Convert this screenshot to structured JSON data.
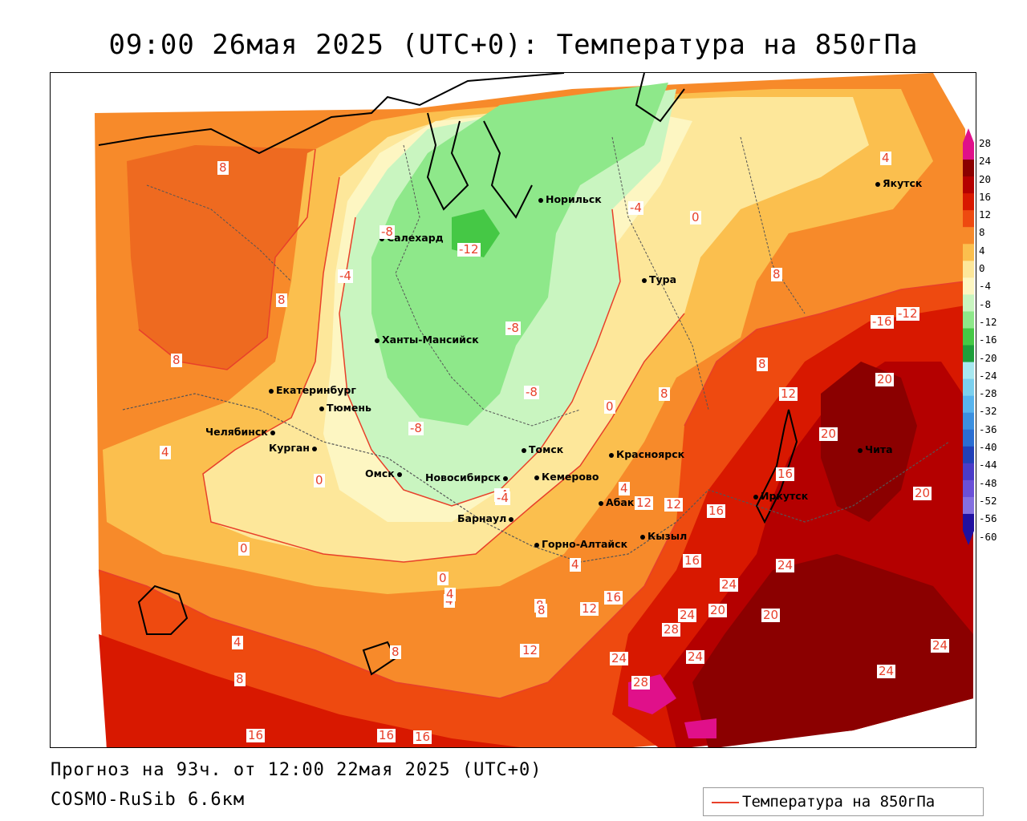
{
  "title": "09:00 26мая 2025 (UTC+0): Температура на 850гПа",
  "footer": {
    "forecast": "Прогноз на 93ч. от 12:00 22мая 2025 (UTC+0)",
    "model": "COSMO-RuSib 6.6км"
  },
  "legend": {
    "label": "Температура на 850гПа",
    "color": "#e8402a"
  },
  "colorbar": {
    "labels": [
      "28",
      "24",
      "20",
      "16",
      "12",
      "8",
      "4",
      "0",
      "-4",
      "-8",
      "-12",
      "-16",
      "-20",
      "-24",
      "-28",
      "-32",
      "-36",
      "-40",
      "-44",
      "-48",
      "-52",
      "-56",
      "-60"
    ],
    "colors": [
      "#e0108a",
      "#8b0000",
      "#b40000",
      "#d81800",
      "#ee4a10",
      "#f78a2a",
      "#fbbf4e",
      "#fde79a",
      "#fdf6c2",
      "#c9f5c0",
      "#8ee88a",
      "#45c845",
      "#1e9e3a",
      "#a8e8f0",
      "#7cd0ee",
      "#58b4ee",
      "#3c90e0",
      "#2a6ed2",
      "#2040b8",
      "#4a3cc8",
      "#6a50d8",
      "#8470e0",
      "#2010a0"
    ]
  },
  "cities": [
    {
      "name": "Норильск"
    },
    {
      "name": "Салехард"
    },
    {
      "name": "Тура"
    },
    {
      "name": "Якутск"
    },
    {
      "name": "Ханты-Мансийск"
    },
    {
      "name": "Екатеринбург"
    },
    {
      "name": "Тюмень"
    },
    {
      "name": "Челябинск"
    },
    {
      "name": "Курган"
    },
    {
      "name": "Омск"
    },
    {
      "name": "Новосибирск"
    },
    {
      "name": "Томск"
    },
    {
      "name": "Кемерово"
    },
    {
      "name": "Красноярск"
    },
    {
      "name": "Барнаул"
    },
    {
      "name": "Абакан"
    },
    {
      "name": "Горно-Алтайск"
    },
    {
      "name": "Кызыл"
    },
    {
      "name": "Иркутск"
    },
    {
      "name": "Чита"
    }
  ],
  "isolines": [
    "8",
    "8",
    "8",
    "-8",
    "-12",
    "-4",
    "-4",
    "0",
    "4",
    "8",
    "8",
    "-8",
    "-8",
    "0",
    "8",
    "12",
    "20",
    "20",
    "20",
    "16",
    "12",
    "16",
    "12",
    "4",
    "0",
    "4",
    "4",
    "0",
    "-8",
    "-4",
    "0",
    "4",
    "8",
    "12",
    "16",
    "12",
    "16",
    "24",
    "24",
    "20",
    "24",
    "20",
    "28",
    "24",
    "24",
    "28",
    "24",
    "24",
    "12",
    "8",
    "4",
    "16",
    "16",
    "16",
    "-12",
    "-16",
    "4",
    "-4",
    "8",
    "8"
  ],
  "colors": {
    "contour": "#e8402a",
    "coast": "#000000",
    "border": "#555555"
  }
}
